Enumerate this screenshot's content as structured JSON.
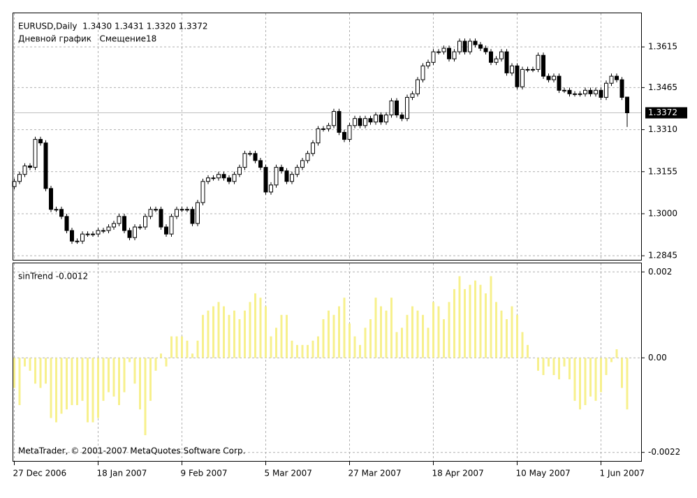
{
  "chart_data": [
    {
      "type": "candlestick",
      "title": "EURUSD,Daily  1.3430 1.3431 1.3320 1.3372",
      "subtitle": "Дневной график   Смещение18",
      "categories": [
        "27 Dec 2006",
        null,
        null,
        null,
        null,
        null,
        null,
        null,
        null,
        null,
        null,
        null,
        null,
        null,
        null,
        null,
        "18 Jan 2007",
        null,
        null,
        null,
        null,
        null,
        null,
        null,
        null,
        null,
        null,
        null,
        null,
        null,
        null,
        null,
        "9 Feb 2007",
        null,
        null,
        null,
        null,
        null,
        null,
        null,
        null,
        null,
        null,
        null,
        null,
        null,
        null,
        null,
        "5 Mar 2007",
        null,
        null,
        null,
        null,
        null,
        null,
        null,
        null,
        null,
        null,
        null,
        null,
        null,
        null,
        null,
        "27 Mar 2007",
        null,
        null,
        null,
        null,
        null,
        null,
        null,
        null,
        null,
        null,
        null,
        null,
        null,
        null,
        null,
        "18 Apr 2007",
        null,
        null,
        null,
        null,
        null,
        null,
        null,
        null,
        null,
        null,
        null,
        null,
        null,
        null,
        null,
        "10 May 2007",
        null,
        null,
        null,
        null,
        null,
        null,
        null,
        null,
        null,
        null,
        null,
        null,
        null,
        null,
        null,
        "1 Jun 2007",
        null,
        null,
        null,
        null,
        null
      ],
      "open": [
        1.31,
        1.3119,
        1.3145,
        1.3176,
        1.3171,
        1.3274,
        1.3261,
        1.3093,
        1.3016,
        1.3016,
        1.299,
        1.2938,
        1.2899,
        1.2899,
        1.2925,
        1.2925,
        1.2925,
        1.2938,
        1.2938,
        1.2951,
        1.2964,
        1.299,
        1.2938,
        1.2912,
        1.2951,
        1.2951,
        1.299,
        1.3016,
        1.3016,
        1.2951,
        1.2925,
        1.299,
        1.3016,
        1.3016,
        1.3016,
        1.2964,
        1.3041,
        1.3119,
        1.3132,
        1.3132,
        1.3145,
        1.3132,
        1.3119,
        1.3145,
        1.3171,
        1.3222,
        1.3222,
        1.3196,
        1.3171,
        1.308,
        1.3106,
        1.3171,
        1.3158,
        1.3119,
        1.3145,
        1.3171,
        1.3196,
        1.3222,
        1.3261,
        1.3313,
        1.3313,
        1.3325,
        1.3377,
        1.33,
        1.3274,
        1.3325,
        1.3351,
        1.3325,
        1.3351,
        1.3338,
        1.3364,
        1.3338,
        1.3364,
        1.3416,
        1.3364,
        1.3351,
        1.3429,
        1.3442,
        1.3494,
        1.3545,
        1.3558,
        1.3597,
        1.3597,
        1.361,
        1.3571,
        1.3597,
        1.3636,
        1.3597,
        1.3636,
        1.3623,
        1.361,
        1.3597,
        1.3558,
        1.3571,
        1.3597,
        1.3519,
        1.3545,
        1.3468,
        1.3532,
        1.3532,
        1.3532,
        1.3584,
        1.3507,
        1.3494,
        1.3507,
        1.3455,
        1.3455,
        1.3442,
        1.3442,
        1.3442,
        1.3455,
        1.3442,
        1.3455,
        1.3429,
        1.3481,
        1.3507,
        1.3494,
        1.343
      ],
      "high": [
        1.3129,
        1.3155,
        1.3186,
        1.3186,
        1.3284,
        1.3284,
        1.3271,
        1.3103,
        1.3026,
        1.3026,
        1.3,
        1.2948,
        1.2909,
        1.2935,
        1.2935,
        1.2935,
        1.2948,
        1.2948,
        1.2961,
        1.2974,
        1.3,
        1.3,
        1.2948,
        1.2961,
        1.2961,
        1.3,
        1.3026,
        1.3026,
        1.3026,
        1.2961,
        1.3,
        1.3026,
        1.3026,
        1.3026,
        1.3026,
        1.3051,
        1.3129,
        1.3142,
        1.3142,
        1.3155,
        1.3155,
        1.3142,
        1.3155,
        1.3181,
        1.3232,
        1.3232,
        1.3232,
        1.3206,
        1.3181,
        1.3116,
        1.3181,
        1.3181,
        1.3168,
        1.3155,
        1.3181,
        1.3206,
        1.3232,
        1.3271,
        1.3323,
        1.3323,
        1.3335,
        1.3387,
        1.3387,
        1.331,
        1.3335,
        1.3361,
        1.3361,
        1.3361,
        1.3361,
        1.3374,
        1.3374,
        1.3374,
        1.3426,
        1.3426,
        1.3374,
        1.3439,
        1.3452,
        1.3504,
        1.3555,
        1.3568,
        1.3607,
        1.3607,
        1.362,
        1.362,
        1.3607,
        1.3646,
        1.3646,
        1.3646,
        1.3646,
        1.3633,
        1.362,
        1.3607,
        1.3581,
        1.3607,
        1.3607,
        1.3555,
        1.3555,
        1.3542,
        1.3542,
        1.3542,
        1.3594,
        1.3594,
        1.3517,
        1.3517,
        1.3517,
        1.3465,
        1.3465,
        1.3452,
        1.3452,
        1.3465,
        1.3465,
        1.3465,
        1.3465,
        1.3491,
        1.3517,
        1.3517,
        1.3504,
        1.3431
      ],
      "low": [
        1.309,
        1.3109,
        1.3135,
        1.3161,
        1.3161,
        1.3251,
        1.3083,
        1.3006,
        1.3006,
        1.298,
        1.2928,
        1.2889,
        1.2889,
        1.2889,
        1.2915,
        1.2915,
        1.2915,
        1.2928,
        1.2928,
        1.2941,
        1.2954,
        1.2928,
        1.2902,
        1.2902,
        1.2941,
        1.2941,
        1.298,
        1.3006,
        1.2941,
        1.2915,
        1.2915,
        1.298,
        1.3006,
        1.3006,
        1.2954,
        1.2954,
        1.3031,
        1.3109,
        1.3122,
        1.3122,
        1.3122,
        1.3109,
        1.3109,
        1.3135,
        1.3161,
        1.3212,
        1.3186,
        1.3161,
        1.307,
        1.307,
        1.3096,
        1.3148,
        1.3109,
        1.3109,
        1.3135,
        1.3161,
        1.3186,
        1.3212,
        1.3251,
        1.3303,
        1.3303,
        1.3315,
        1.329,
        1.3264,
        1.3264,
        1.3315,
        1.3315,
        1.3315,
        1.3328,
        1.3328,
        1.3328,
        1.3328,
        1.3354,
        1.3354,
        1.3341,
        1.3341,
        1.3419,
        1.3432,
        1.3484,
        1.3535,
        1.3548,
        1.3587,
        1.3587,
        1.3561,
        1.3561,
        1.3587,
        1.3587,
        1.3587,
        1.3613,
        1.36,
        1.3587,
        1.3548,
        1.3548,
        1.3561,
        1.3509,
        1.3509,
        1.3458,
        1.3458,
        1.3522,
        1.3522,
        1.3522,
        1.3497,
        1.3484,
        1.3484,
        1.3445,
        1.3445,
        1.3432,
        1.3432,
        1.3432,
        1.3432,
        1.3432,
        1.3432,
        1.3419,
        1.3419,
        1.3471,
        1.3484,
        1.3419,
        1.332
      ],
      "close": [
        1.3119,
        1.3145,
        1.3176,
        1.3171,
        1.3274,
        1.3261,
        1.3093,
        1.3016,
        1.3016,
        1.299,
        1.2938,
        1.2899,
        1.2899,
        1.2925,
        1.2925,
        1.2925,
        1.2938,
        1.2938,
        1.2951,
        1.2964,
        1.299,
        1.2938,
        1.2912,
        1.2951,
        1.2951,
        1.299,
        1.3016,
        1.3016,
        1.2951,
        1.2925,
        1.299,
        1.3016,
        1.3016,
        1.3016,
        1.2964,
        1.3041,
        1.3119,
        1.3132,
        1.3132,
        1.3145,
        1.3132,
        1.3119,
        1.3145,
        1.3171,
        1.3222,
        1.3222,
        1.3196,
        1.3171,
        1.308,
        1.3106,
        1.3171,
        1.3158,
        1.3119,
        1.3145,
        1.3171,
        1.3196,
        1.3222,
        1.3261,
        1.3313,
        1.3313,
        1.3325,
        1.3377,
        1.33,
        1.3274,
        1.3325,
        1.3351,
        1.3325,
        1.3351,
        1.3338,
        1.3364,
        1.3338,
        1.3364,
        1.3416,
        1.3364,
        1.3351,
        1.3429,
        1.3442,
        1.3494,
        1.3545,
        1.3558,
        1.3597,
        1.3597,
        1.361,
        1.3571,
        1.3597,
        1.3636,
        1.3597,
        1.3636,
        1.3623,
        1.361,
        1.3597,
        1.3558,
        1.3571,
        1.3597,
        1.3519,
        1.3545,
        1.3468,
        1.3532,
        1.3532,
        1.3532,
        1.3584,
        1.3507,
        1.3494,
        1.3507,
        1.3455,
        1.3455,
        1.3442,
        1.3442,
        1.3442,
        1.3455,
        1.3442,
        1.3455,
        1.3429,
        1.3481,
        1.3507,
        1.3494,
        1.3429,
        1.3372
      ],
      "up_color": "#ffffff",
      "down_color": "#000000",
      "ylim": [
        1.283,
        1.3739
      ],
      "yticks": [
        1.3615,
        1.3465,
        {
          "value": 1.331,
          "label": "1.3310"
        },
        1.3155,
        {
          "value": 1.3,
          "label": "1.3000"
        },
        1.2845
      ],
      "last_price": 1.3372,
      "grid": true
    },
    {
      "type": "bar",
      "title": "sinTrend -0.0012",
      "annotation": "MetaTrader, © 2001-2007 MetaQuotes Software Corp.",
      "values": [
        -0.0007,
        -0.0011,
        -0.0002,
        -0.0003,
        -0.0006,
        -0.0007,
        -0.0006,
        -0.0014,
        -0.0015,
        -0.0013,
        -0.0012,
        -0.0011,
        -0.0011,
        -0.001,
        -0.0015,
        -0.0015,
        -0.0014,
        -0.001,
        -0.0008,
        -0.0009,
        -0.0011,
        -0.0008,
        -0.0001,
        -0.0006,
        -0.0012,
        -0.0018,
        -0.001,
        -0.0003,
        0.0001,
        -0.0002,
        0.0005,
        0.0005,
        0.0005,
        0.0004,
        0.0001,
        0.0004,
        0.001,
        0.0011,
        0.0012,
        0.0013,
        0.0012,
        0.001,
        0.0011,
        0.0009,
        0.0011,
        0.0013,
        0.0015,
        0.0014,
        0.0012,
        0.0005,
        0.0007,
        0.001,
        0.001,
        0.0004,
        0.0003,
        0.0003,
        0.0003,
        0.0004,
        0.0005,
        0.0009,
        0.0011,
        0.001,
        0.0012,
        0.0014,
        0.0008,
        0.0005,
        0.0003,
        0.0007,
        0.0009,
        0.0014,
        0.0012,
        0.0011,
        0.0014,
        0.0006,
        0.0007,
        0.001,
        0.0012,
        0.0011,
        0.001,
        0.0007,
        0.0013,
        0.0012,
        0.0009,
        0.0013,
        0.0016,
        0.0019,
        0.0016,
        0.0017,
        0.0018,
        0.0017,
        0.0015,
        0.0019,
        0.0013,
        0.0011,
        0.0009,
        0.0012,
        0.001,
        0.0006,
        0.0003,
        0.0,
        -0.0003,
        -0.0004,
        -0.0002,
        -0.0004,
        -0.0005,
        -0.0002,
        -0.0005,
        -0.001,
        -0.0012,
        -0.0011,
        -0.0009,
        -0.001,
        -0.0008,
        -0.0004,
        -0.0001,
        0.0002,
        -0.0007,
        -0.0012
      ],
      "color": "#f7f08c",
      "ylim": [
        -0.0024,
        0.0022
      ],
      "yticks": [
        0.002,
        {
          "value": 0,
          "label": "0.00"
        },
        -0.0022
      ],
      "grid": true
    }
  ]
}
